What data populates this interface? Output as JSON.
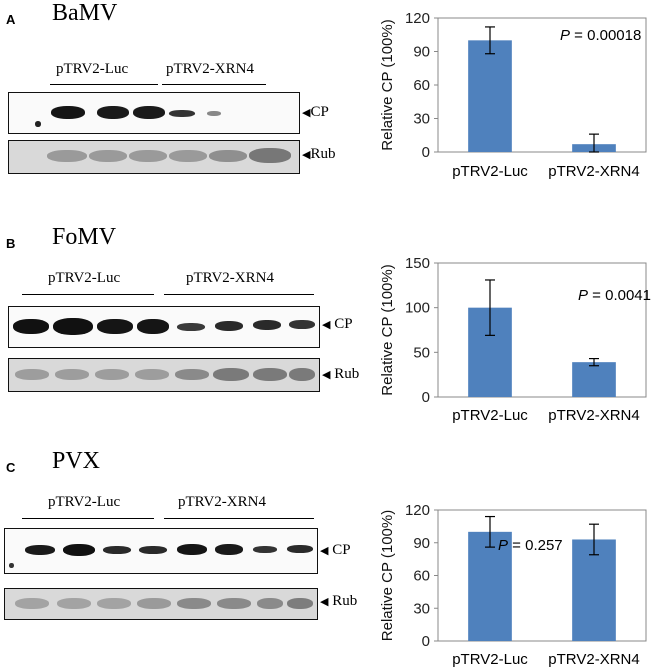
{
  "panels": [
    {
      "letter": "A",
      "virus": "BaMV",
      "group_left": "pTRV2-Luc",
      "group_right": "pTRV2-XRN4",
      "blot_labels": {
        "cp": "CP",
        "rub": "Rub"
      },
      "arrow": "◀"
    },
    {
      "letter": "B",
      "virus": "FoMV",
      "group_left": "pTRV2-Luc",
      "group_right": "pTRV2-XRN4",
      "blot_labels": {
        "cp": "CP",
        "rub": "Rub"
      },
      "arrow": "◀"
    },
    {
      "letter": "C",
      "virus": "PVX",
      "group_left": "pTRV2-Luc",
      "group_right": "pTRV2-XRN4",
      "blot_labels": {
        "cp": "CP",
        "rub": "Rub"
      },
      "arrow": "◀"
    }
  ],
  "chart_data": [
    {
      "type": "bar",
      "categories": [
        "pTRV2-Luc",
        "pTRV2-XRN4"
      ],
      "values": [
        100,
        7
      ],
      "errors": [
        12,
        9
      ],
      "ylabel": "Relative CP (100%)",
      "ylim": [
        0,
        120
      ],
      "yticks": [
        0,
        30,
        60,
        90,
        120
      ],
      "annotation": {
        "p_label": "P",
        "p_value": "= 0.00018"
      },
      "bar_color": "#4f81bd",
      "grid": false
    },
    {
      "type": "bar",
      "categories": [
        "pTRV2-Luc",
        "pTRV2-XRN4"
      ],
      "values": [
        100,
        39
      ],
      "errors": [
        31,
        4
      ],
      "ylabel": "Relative CP (100%)",
      "ylim": [
        0,
        150
      ],
      "yticks": [
        0,
        50,
        100,
        150
      ],
      "annotation": {
        "p_label": "P",
        "p_value": "= 0.0041"
      },
      "bar_color": "#4f81bd",
      "grid": false
    },
    {
      "type": "bar",
      "categories": [
        "pTRV2-Luc",
        "pTRV2-XRN4"
      ],
      "values": [
        100,
        93
      ],
      "errors": [
        14,
        14
      ],
      "ylabel": "Relative CP (100%)",
      "ylim": [
        0,
        120
      ],
      "yticks": [
        0,
        30,
        60,
        90,
        120
      ],
      "annotation": {
        "p_label": "P",
        "p_value": "= 0.257"
      },
      "bar_color": "#4f81bd",
      "grid": false
    }
  ]
}
